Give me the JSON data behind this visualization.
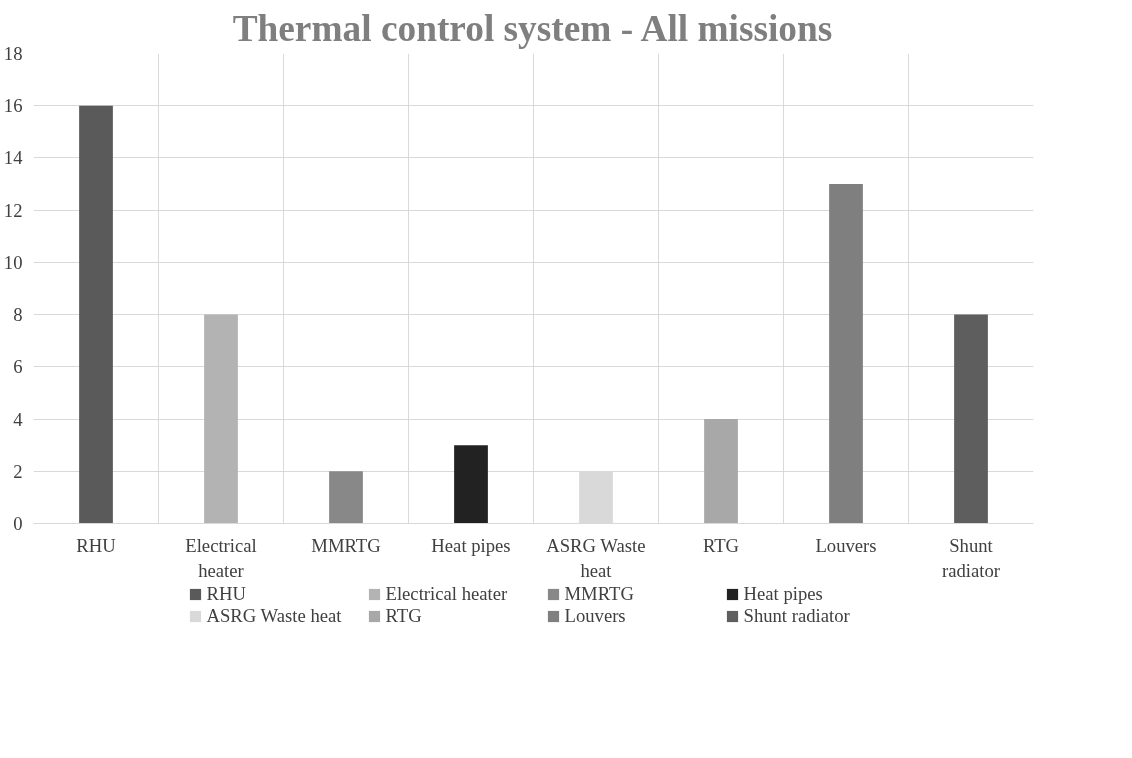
{
  "chart_data": {
    "type": "bar",
    "title": "Thermal control system - All missions",
    "categories": [
      "RHU",
      "Electrical heater",
      "MMRTG",
      "Heat pipes",
      "ASRG Waste heat",
      "RTG",
      "Louvers",
      "Shunt radiator"
    ],
    "stacked": true,
    "series": [
      {
        "name": "RHU",
        "color": "#5a5a5a",
        "values": [
          16,
          null,
          null,
          null,
          null,
          null,
          null,
          null
        ]
      },
      {
        "name": "Electrical heater",
        "color": "#b3b3b3",
        "values": [
          null,
          8,
          null,
          null,
          null,
          null,
          null,
          null
        ]
      },
      {
        "name": "MMRTG",
        "color": "#888888",
        "values": [
          null,
          null,
          2,
          null,
          null,
          null,
          null,
          null
        ]
      },
      {
        "name": "Heat pipes",
        "color": "#222222",
        "values": [
          null,
          null,
          null,
          3,
          null,
          null,
          null,
          null
        ]
      },
      {
        "name": "ASRG Waste heat",
        "color": "#d9d9d9",
        "values": [
          null,
          null,
          null,
          null,
          2,
          null,
          null,
          null
        ]
      },
      {
        "name": "RTG",
        "color": "#a8a8a8",
        "values": [
          null,
          null,
          null,
          null,
          null,
          4,
          null,
          null
        ]
      },
      {
        "name": "Louvers",
        "color": "#7f7f7f",
        "values": [
          null,
          null,
          null,
          null,
          null,
          null,
          13,
          null
        ]
      },
      {
        "name": "Shunt radiator",
        "color": "#5e5e5e",
        "values": [
          null,
          null,
          null,
          null,
          null,
          null,
          null,
          8
        ]
      }
    ],
    "ylim": [
      0,
      18
    ],
    "yticks": [
      0,
      2,
      4,
      6,
      8,
      10,
      12,
      14,
      16,
      18
    ],
    "grid": true,
    "legend": "bottom"
  }
}
